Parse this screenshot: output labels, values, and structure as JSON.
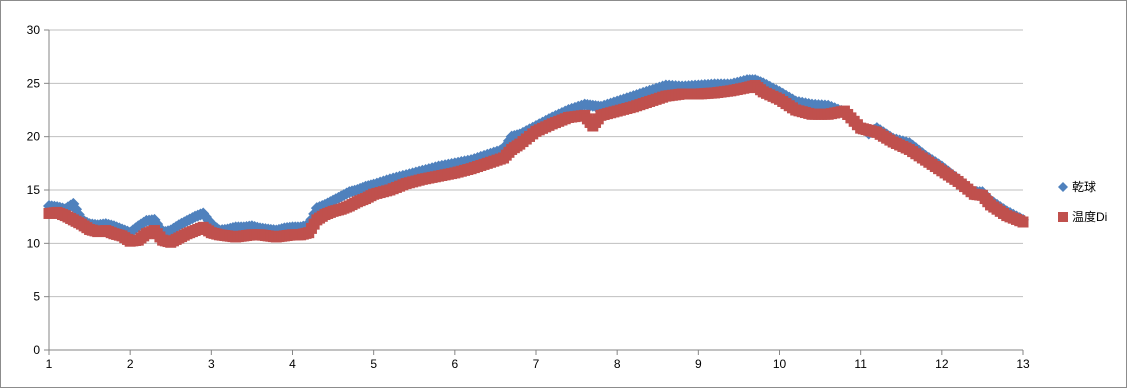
{
  "chart_data": {
    "type": "scatter",
    "x_ticks": [
      1,
      2,
      3,
      4,
      5,
      6,
      7,
      8,
      9,
      10,
      11,
      12,
      13
    ],
    "y_ticks": [
      0,
      5,
      10,
      15,
      20,
      25,
      30
    ],
    "xlim": [
      1,
      13
    ],
    "ylim": [
      0,
      30
    ],
    "grid": "horizontal",
    "legend_position": "right",
    "colors": {
      "series1": "#4f81bd",
      "series2": "#c0504d",
      "grid": "#bfbfbf",
      "axis": "#868686"
    },
    "series": [
      {
        "name": "乾球",
        "marker": "diamond",
        "x": [
          1.0,
          1.1,
          1.2,
          1.3,
          1.4,
          1.5,
          1.6,
          1.7,
          1.8,
          1.9,
          2.0,
          2.1,
          2.2,
          2.3,
          2.4,
          2.5,
          2.6,
          2.7,
          2.8,
          2.9,
          3.0,
          3.1,
          3.2,
          3.3,
          3.4,
          3.5,
          3.6,
          3.7,
          3.8,
          3.9,
          4.0,
          4.1,
          4.2,
          4.3,
          4.4,
          4.5,
          4.6,
          4.7,
          4.8,
          4.9,
          5.0,
          5.2,
          5.4,
          5.6,
          5.8,
          6.0,
          6.2,
          6.4,
          6.6,
          6.7,
          6.8,
          7.0,
          7.2,
          7.4,
          7.6,
          7.7,
          7.8,
          8.0,
          8.2,
          8.4,
          8.6,
          8.8,
          9.0,
          9.2,
          9.4,
          9.6,
          9.7,
          9.8,
          10.0,
          10.2,
          10.4,
          10.6,
          10.8,
          11.0,
          11.1,
          11.2,
          11.4,
          11.6,
          11.8,
          12.0,
          12.2,
          12.4,
          12.5,
          12.6,
          12.8,
          13.0
        ],
        "y": [
          13.5,
          13.4,
          13.2,
          13.7,
          12.2,
          11.8,
          11.7,
          11.8,
          11.6,
          11.3,
          11.0,
          11.6,
          12.1,
          12.2,
          11.0,
          11.2,
          11.7,
          12.1,
          12.5,
          12.8,
          11.8,
          11.2,
          11.3,
          11.5,
          11.5,
          11.6,
          11.4,
          11.3,
          11.2,
          11.4,
          11.5,
          11.5,
          11.7,
          13.3,
          13.6,
          14.0,
          14.4,
          14.8,
          15.0,
          15.3,
          15.5,
          16.0,
          16.4,
          16.8,
          17.2,
          17.5,
          17.8,
          18.3,
          18.8,
          20.0,
          20.2,
          21.0,
          21.8,
          22.5,
          23.0,
          22.9,
          22.8,
          23.3,
          23.8,
          24.3,
          24.8,
          24.7,
          24.8,
          24.9,
          24.9,
          25.3,
          25.3,
          25.0,
          24.2,
          23.3,
          23.0,
          22.9,
          22.3,
          21.0,
          20.3,
          20.8,
          19.8,
          19.4,
          18.2,
          17.2,
          16.0,
          14.8,
          14.8,
          14.0,
          13.0,
          12.2
        ]
      },
      {
        "name": "温度Di",
        "marker": "square",
        "x": [
          1.0,
          1.1,
          1.2,
          1.3,
          1.4,
          1.5,
          1.6,
          1.7,
          1.8,
          1.9,
          2.0,
          2.1,
          2.2,
          2.3,
          2.4,
          2.5,
          2.6,
          2.7,
          2.8,
          2.9,
          3.0,
          3.1,
          3.2,
          3.3,
          3.4,
          3.5,
          3.6,
          3.7,
          3.8,
          3.9,
          4.0,
          4.1,
          4.2,
          4.3,
          4.4,
          4.5,
          4.6,
          4.7,
          4.8,
          4.9,
          5.0,
          5.2,
          5.4,
          5.6,
          5.8,
          6.0,
          6.2,
          6.4,
          6.6,
          6.7,
          6.8,
          7.0,
          7.2,
          7.4,
          7.6,
          7.7,
          7.8,
          8.0,
          8.2,
          8.4,
          8.6,
          8.8,
          9.0,
          9.2,
          9.4,
          9.6,
          9.7,
          9.8,
          10.0,
          10.2,
          10.4,
          10.6,
          10.8,
          11.0,
          11.1,
          11.2,
          11.4,
          11.6,
          11.8,
          12.0,
          12.2,
          12.4,
          12.5,
          12.6,
          12.8,
          13.0
        ],
        "y": [
          12.8,
          12.9,
          12.6,
          12.2,
          11.8,
          11.3,
          11.1,
          11.2,
          10.9,
          10.7,
          10.2,
          10.3,
          10.9,
          11.2,
          10.3,
          10.1,
          10.5,
          10.9,
          11.2,
          11.5,
          11.0,
          10.8,
          10.7,
          10.6,
          10.7,
          10.8,
          10.8,
          10.7,
          10.6,
          10.7,
          10.8,
          10.8,
          11.0,
          12.2,
          12.7,
          13.0,
          13.2,
          13.5,
          13.9,
          14.2,
          14.6,
          15.0,
          15.6,
          16.0,
          16.3,
          16.6,
          17.0,
          17.5,
          18.0,
          18.8,
          19.3,
          20.5,
          21.2,
          21.8,
          22.0,
          21.0,
          22.0,
          22.4,
          22.8,
          23.3,
          23.8,
          24.0,
          24.0,
          24.1,
          24.3,
          24.6,
          24.8,
          24.2,
          23.5,
          22.5,
          22.1,
          22.1,
          22.4,
          20.8,
          20.6,
          20.4,
          19.5,
          18.8,
          17.8,
          16.8,
          15.8,
          14.6,
          14.5,
          13.6,
          12.6,
          12.0
        ]
      }
    ]
  }
}
